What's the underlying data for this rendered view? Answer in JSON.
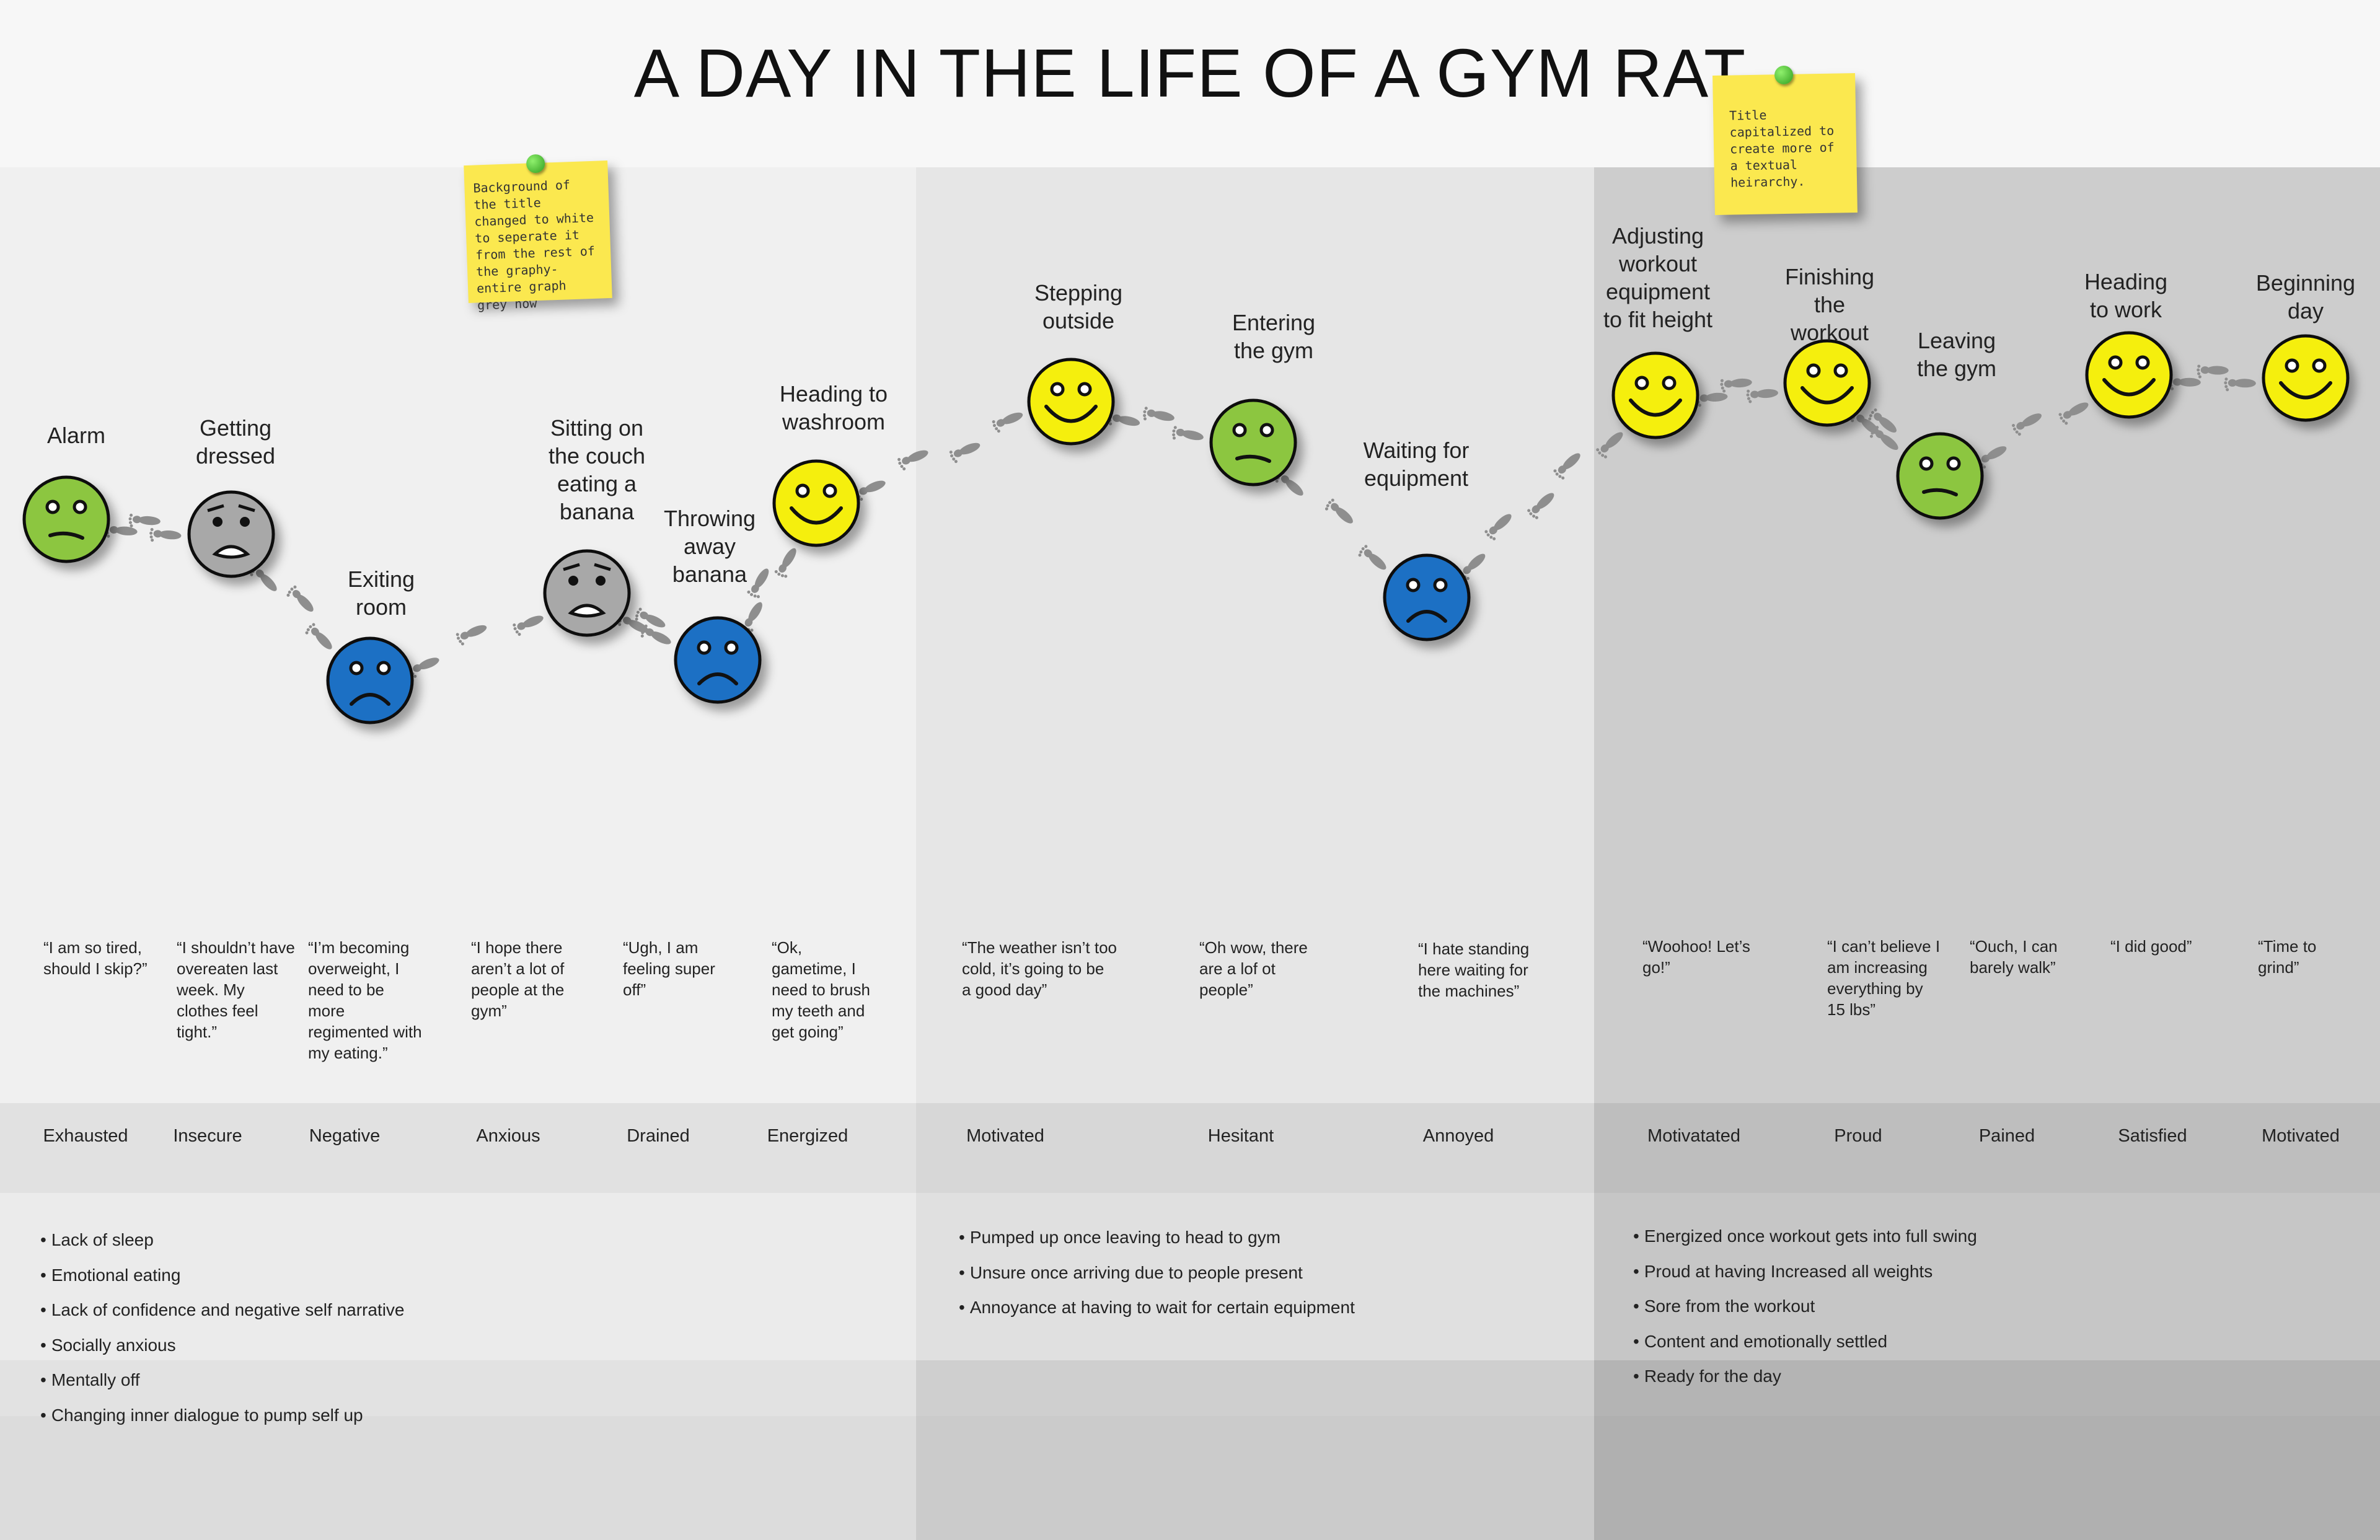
{
  "title": "A DAY IN THE LIFE OF A GYM RAT",
  "colors": {
    "happy": "#f5ef10",
    "neutral": "#8cc63f",
    "anxious": "#a8a8a8",
    "sad": "#1f6fc4",
    "sticky": "#fbe84f"
  },
  "stages": [
    {
      "label": "Alarm",
      "mood": "neutral",
      "emotion": "Exhausted",
      "quote": "“I am so tired, should I skip?”"
    },
    {
      "label": "Getting dressed",
      "mood": "anxious",
      "emotion": "Insecure",
      "quote": "“I shouldn’t have overeaten last week. My clothes feel tight.”"
    },
    {
      "label": "Exiting room",
      "mood": "sad",
      "emotion": "Negative",
      "quote": "“I’m becoming overweight, I need to be more regimented with my eating.”"
    },
    {
      "label": "Sitting on the couch eating a banana",
      "mood": "anxious",
      "emotion": "Anxious",
      "quote": "“I hope there aren’t a lot of people at the gym”"
    },
    {
      "label": "Throwing away banana",
      "mood": "sad",
      "emotion": "Drained",
      "quote": "“Ugh, I am feeling super off”"
    },
    {
      "label": "Heading to washroom",
      "mood": "happy",
      "emotion": "Energized",
      "quote": "“Ok, gametime, I need to brush my teeth and get going”"
    },
    {
      "label": "Stepping outside",
      "mood": "happy",
      "emotion": "Motivated",
      "quote": "“The weather isn’t too cold, it’s going to be a good day”"
    },
    {
      "label": "Entering the gym",
      "mood": "neutral",
      "emotion": "Hesitant",
      "quote": "“Oh wow, there are a lof ot people”"
    },
    {
      "label": "Waiting for equipment",
      "mood": "sad",
      "emotion": "Annoyed",
      "quote": "“I hate standing here waiting for the machines”"
    },
    {
      "label": "Adjusting workout equipment to fit height",
      "mood": "happy",
      "emotion": "Motivatated",
      "quote": "“Woohoo! Let’s go!”"
    },
    {
      "label": "Finishing the workout",
      "mood": "happy",
      "emotion": "Proud",
      "quote": "“I can’t believe I am increasing everything by 15 lbs”"
    },
    {
      "label": "Leaving the gym",
      "mood": "neutral",
      "emotion": "Pained",
      "quote": "“Ouch, I can barely walk”"
    },
    {
      "label": "Heading to work",
      "mood": "happy",
      "emotion": "Satisfied",
      "quote": "“I did good”"
    },
    {
      "label": "Beginning day",
      "mood": "happy",
      "emotion": "Motivated",
      "quote": "“Time to grind”"
    }
  ],
  "insights": [
    [
      "Lack of sleep",
      "Emotional eating",
      "Lack of confidence and negative self narrative",
      "Socially anxious",
      "Mentally off",
      "Changing inner dialogue to pump self up"
    ],
    [
      "Pumped up once leaving to head to gym",
      "Unsure once arriving due to people present",
      "Annoyance at having to wait for certain equipment"
    ],
    [
      "Energized once workout gets into full swing",
      "Proud at having Increased all weights",
      "Sore from the workout",
      "Content and emotionally settled",
      "Ready for the day"
    ]
  ],
  "notes": [
    "Background of the title changed to white to seperate it from the rest of the graphy- entire graph grey now",
    "Title capitalized to create more of a textual heirarchy."
  ]
}
